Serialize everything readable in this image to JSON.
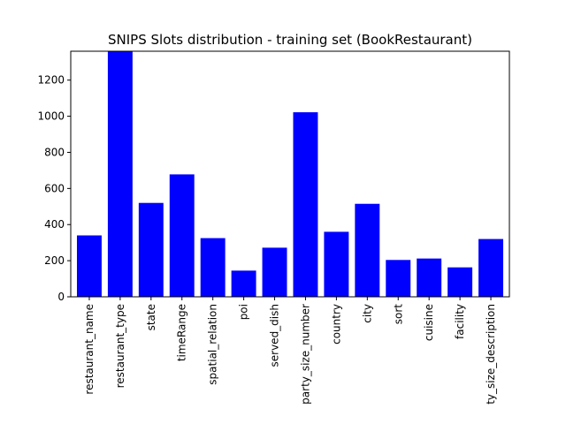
{
  "chart_data": {
    "type": "bar",
    "title": "SNIPS Slots distribution - training set (BookRestaurant)",
    "xlabel": "",
    "ylabel": "",
    "categories": [
      "restaurant_name",
      "restaurant_type",
      "state",
      "timeRange",
      "spatial_relation",
      "poi",
      "served_dish",
      "party_size_number",
      "country",
      "city",
      "sort",
      "cuisine",
      "facility",
      "ty_size_description"
    ],
    "values": [
      340,
      1360,
      520,
      678,
      325,
      145,
      272,
      1022,
      360,
      515,
      204,
      212,
      163,
      320
    ],
    "ylim": [
      0,
      1360
    ],
    "yticks": [
      0,
      200,
      400,
      600,
      800,
      1000,
      1200
    ],
    "bar_color": "#0000ff",
    "grid": false,
    "legend": "none"
  }
}
